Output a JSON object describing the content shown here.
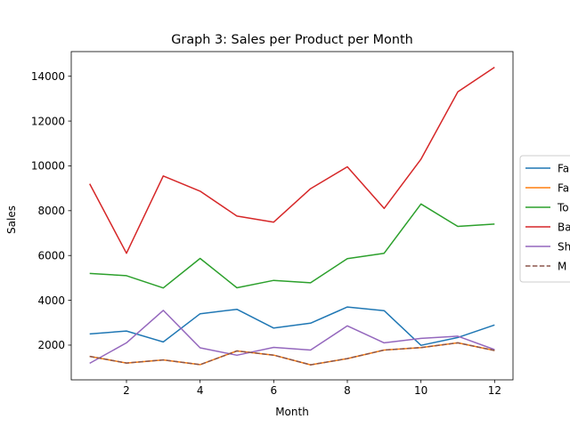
{
  "chart_data": {
    "type": "line",
    "title": "Graph 3: Sales per Product per Month",
    "xlabel": "Month",
    "ylabel": "Sales",
    "xlim": [
      0.5,
      12.5
    ],
    "ylim": [
      450,
      15100
    ],
    "x_ticks": [
      2,
      4,
      6,
      8,
      10,
      12
    ],
    "y_ticks": [
      2000,
      4000,
      6000,
      8000,
      10000,
      12000,
      14000
    ],
    "grid": false,
    "legend_position": "right, outside plot (clipped)",
    "x": [
      1,
      2,
      3,
      4,
      5,
      6,
      7,
      8,
      9,
      10,
      11,
      12
    ],
    "series": [
      {
        "name": "Fa",
        "color": "#1f77b4",
        "dash": "solid",
        "values": [
          2500,
          2630,
          2140,
          3400,
          3600,
          2760,
          2980,
          3700,
          3540,
          1990,
          2340,
          2900
        ]
      },
      {
        "name": "Fa",
        "color": "#ff7f0e",
        "dash": "solid",
        "values": [
          1500,
          1200,
          1340,
          1130,
          1740,
          1555,
          1120,
          1400,
          1780,
          1890,
          2100,
          1760
        ]
      },
      {
        "name": "To",
        "color": "#2ca02c",
        "dash": "solid",
        "values": [
          5200,
          5100,
          4550,
          5870,
          4560,
          4890,
          4780,
          5860,
          6100,
          8300,
          7300,
          7400
        ]
      },
      {
        "name": "Ba",
        "color": "#d62728",
        "dash": "solid",
        "values": [
          9200,
          6100,
          9550,
          8870,
          7760,
          7490,
          8980,
          9960,
          8100,
          10300,
          13300,
          14400
        ]
      },
      {
        "name": "Sh",
        "color": "#9467bd",
        "dash": "solid",
        "values": [
          1190,
          2100,
          3550,
          1880,
          1550,
          1900,
          1780,
          2860,
          2100,
          2300,
          2400,
          1800
        ]
      },
      {
        "name": "M",
        "color": "#8c564b",
        "dash": "dashed",
        "values": [
          1500,
          1200,
          1340,
          1130,
          1740,
          1555,
          1120,
          1400,
          1780,
          1890,
          2100,
          1760
        ]
      }
    ]
  }
}
